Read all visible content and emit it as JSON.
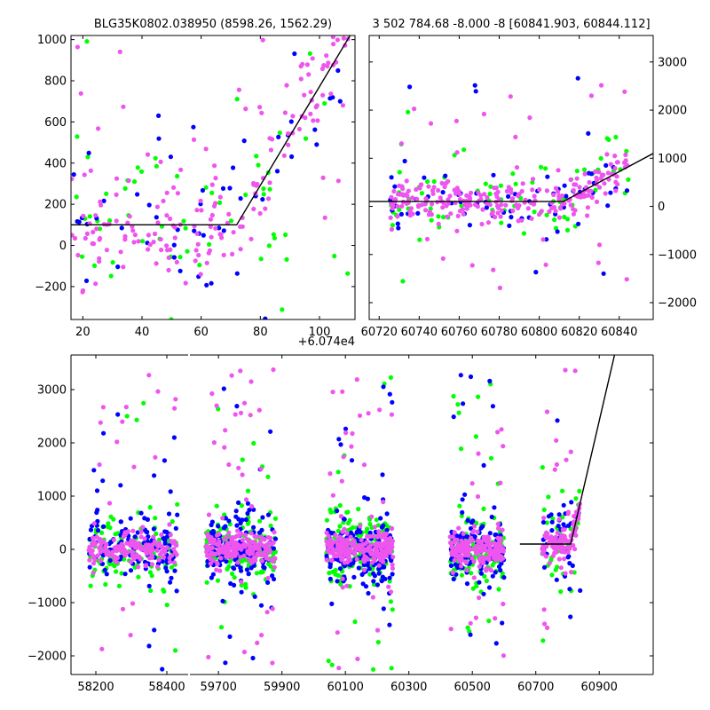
{
  "colors": {
    "series_green": "#00ff00",
    "series_blue": "#0000ff",
    "series_magenta": "#ee55ee",
    "model_line": "#000000"
  },
  "chart_data": [
    {
      "id": "top-left",
      "type": "scatter",
      "title": "BLG35K0802.038950 (8598.26, 1562.29)",
      "xlabel": "",
      "ylabel": "",
      "xlim": [
        16,
        112
      ],
      "ylim": [
        -360,
        1020
      ],
      "x_offset_label": "+6.074e4",
      "xticks": [
        20,
        40,
        60,
        80,
        100
      ],
      "xtick_labels": [
        "20",
        "40",
        "60",
        "80",
        "100"
      ],
      "yticks": [
        -200,
        0,
        200,
        400,
        600,
        800,
        1000
      ],
      "ytick_labels": [
        "−200",
        "0",
        "200",
        "400",
        "600",
        "800",
        "1000"
      ],
      "y_axis_side": "left",
      "model_line": {
        "x": [
          16,
          72,
          112
        ],
        "y": [
          100,
          100,
          1060
        ]
      },
      "scatter_gen": {
        "seed": 11,
        "n": [
          60,
          55,
          180
        ],
        "xrange": [
          16,
          110
        ],
        "base_spread": 180,
        "outlier_frac": 0.15,
        "outlier_range": [
          -360,
          1000
        ]
      }
    },
    {
      "id": "top-right",
      "type": "scatter",
      "title": "3 502 784.68 -8.000 -8 [60841.903, 60844.112]",
      "xlabel": "",
      "ylabel": "",
      "xlim": [
        60715,
        60857
      ],
      "ylim": [
        -2350,
        3550
      ],
      "xticks": [
        60720,
        60740,
        60760,
        60780,
        60800,
        60820,
        60840
      ],
      "xtick_labels": [
        "60720",
        "60740",
        "60760",
        "60780",
        "60800",
        "60820",
        "60840"
      ],
      "yticks": [
        -2000,
        -1000,
        0,
        1000,
        2000,
        3000
      ],
      "ytick_labels": [
        "−2000",
        "−1000",
        "0",
        "1000",
        "2000",
        "3000"
      ],
      "y_axis_side": "right",
      "model_line": {
        "x": [
          60715,
          60812,
          60857
        ],
        "y": [
          100,
          100,
          1100
        ]
      },
      "scatter_gen": {
        "seed": 23,
        "n": [
          80,
          70,
          260
        ],
        "xrange": [
          60725,
          60845
        ],
        "base_spread": 260,
        "outlier_frac": 0.12,
        "outlier_range": [
          -1900,
          2900
        ]
      }
    },
    {
      "id": "bottom",
      "type": "scatter",
      "title": "",
      "xlabel": "",
      "ylabel": "",
      "ylim": [
        -2350,
        3650
      ],
      "yticks": [
        -2000,
        -1000,
        0,
        1000,
        2000,
        3000
      ],
      "ytick_labels": [
        "−2000",
        "−1000",
        "0",
        "1000",
        "2000",
        "3000"
      ],
      "y_axis_side": "left",
      "broken_x_axis": true,
      "segments": [
        {
          "xlim": [
            58130,
            58460
          ],
          "xticks": [
            58200,
            58400
          ],
          "xtick_labels": [
            "58200",
            "58400"
          ],
          "clusters": [
            [
              58180,
              58430
            ]
          ]
        },
        {
          "xlim": [
            59610,
            61070
          ],
          "xticks": [
            59700,
            59900,
            60100,
            60300,
            60500,
            60700,
            60900
          ],
          "xtick_labels": [
            "59700",
            "59900",
            "60100",
            "60300",
            "60500",
            "60700",
            "60900"
          ],
          "clusters": [
            [
              59660,
              59880
            ],
            [
              60040,
              60250
            ],
            [
              60430,
              60600
            ],
            [
              60720,
              60840
            ]
          ]
        }
      ],
      "model_line": {
        "x": [
          60650,
          60810,
          60950
        ],
        "y": [
          100,
          100,
          3700
        ]
      },
      "scatter_gen": {
        "seed": 37,
        "per_cluster": [
          [
            110,
            130,
            170
          ],
          [
            150,
            160,
            220
          ],
          [
            160,
            170,
            240
          ],
          [
            120,
            120,
            200
          ],
          [
            40,
            40,
            120
          ]
        ],
        "base_spread": 250,
        "outlier_frac": 0.12,
        "outlier_range": [
          -2300,
          3400
        ]
      }
    }
  ]
}
